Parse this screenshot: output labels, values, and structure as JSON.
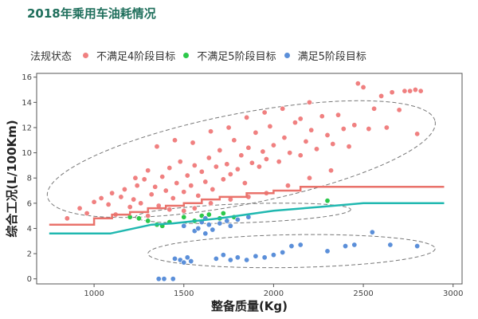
{
  "title": "2018年乘用车油耗情况",
  "chart_data": {
    "type": "scatter",
    "xlabel": "整备质量(Kg)",
    "ylabel": "综合工况(L/100Km)",
    "xlim": [
      680,
      3050
    ],
    "ylim": [
      -0.4,
      16.3
    ],
    "xticks": [
      1000,
      1500,
      2000,
      2500,
      3000
    ],
    "yticks": [
      0,
      2,
      4,
      6,
      8,
      10,
      12,
      14,
      16
    ],
    "grid": false,
    "legend": {
      "title": "法规状态",
      "placement": "top",
      "entries": [
        "不满足4阶段目标",
        "不满足5阶段目标",
        "满足5阶段目标"
      ]
    },
    "series": [
      {
        "name": "不满足4阶段目标",
        "color": "#f08080",
        "points": [
          [
            850,
            4.8
          ],
          [
            920,
            5.6
          ],
          [
            960,
            5.2
          ],
          [
            1000,
            6.1
          ],
          [
            1040,
            6.4
          ],
          [
            1080,
            5.9
          ],
          [
            1100,
            6.8
          ],
          [
            1120,
            5.1
          ],
          [
            1150,
            6.5
          ],
          [
            1170,
            7.1
          ],
          [
            1200,
            5.7
          ],
          [
            1220,
            6.3
          ],
          [
            1240,
            7.4
          ],
          [
            1260,
            6.0
          ],
          [
            1280,
            7.9
          ],
          [
            1300,
            8.6
          ],
          [
            1320,
            6.7
          ],
          [
            1340,
            7.3
          ],
          [
            1360,
            5.8
          ],
          [
            1380,
            8.1
          ],
          [
            1400,
            7.0
          ],
          [
            1420,
            8.8
          ],
          [
            1440,
            6.4
          ],
          [
            1460,
            7.6
          ],
          [
            1480,
            9.3
          ],
          [
            1500,
            6.9
          ],
          [
            1520,
            8.2
          ],
          [
            1540,
            7.4
          ],
          [
            1560,
            9.0
          ],
          [
            1580,
            6.6
          ],
          [
            1600,
            8.5
          ],
          [
            1620,
            7.7
          ],
          [
            1640,
            9.6
          ],
          [
            1660,
            7.1
          ],
          [
            1680,
            8.9
          ],
          [
            1700,
            10.2
          ],
          [
            1720,
            7.9
          ],
          [
            1740,
            9.1
          ],
          [
            1760,
            8.3
          ],
          [
            1780,
            11.0
          ],
          [
            1800,
            8.7
          ],
          [
            1820,
            9.8
          ],
          [
            1840,
            7.6
          ],
          [
            1860,
            10.4
          ],
          [
            1880,
            9.2
          ],
          [
            1900,
            11.6
          ],
          [
            1920,
            8.9
          ],
          [
            1940,
            10.1
          ],
          [
            1960,
            9.5
          ],
          [
            1980,
            12.1
          ],
          [
            2000,
            10.6
          ],
          [
            2030,
            9.3
          ],
          [
            2060,
            11.2
          ],
          [
            2090,
            10.0
          ],
          [
            2120,
            12.4
          ],
          [
            2150,
            9.8
          ],
          [
            2180,
            10.9
          ],
          [
            2210,
            11.8
          ],
          [
            2240,
            10.3
          ],
          [
            2270,
            12.9
          ],
          [
            2300,
            11.4
          ],
          [
            2330,
            10.7
          ],
          [
            2360,
            13.0
          ],
          [
            2390,
            11.9
          ],
          [
            2420,
            10.5
          ],
          [
            2450,
            12.2
          ],
          [
            2470,
            15.5
          ],
          [
            2500,
            15.2
          ],
          [
            2530,
            11.9
          ],
          [
            2560,
            13.5
          ],
          [
            2600,
            14.5
          ],
          [
            2630,
            12.0
          ],
          [
            2660,
            14.8
          ],
          [
            2700,
            13.4
          ],
          [
            2730,
            14.9
          ],
          [
            2760,
            14.9
          ],
          [
            2790,
            15.0
          ],
          [
            2820,
            14.9
          ],
          [
            2800,
            11.5
          ],
          [
            1230,
            8.0
          ],
          [
            1350,
            10.5
          ],
          [
            1450,
            11.0
          ],
          [
            1550,
            10.8
          ],
          [
            1650,
            11.7
          ],
          [
            1750,
            12.0
          ],
          [
            1850,
            12.8
          ],
          [
            1950,
            13.2
          ],
          [
            2050,
            13.5
          ],
          [
            2200,
            14.0
          ],
          [
            2150,
            12.7
          ],
          [
            1300,
            5.0
          ],
          [
            1420,
            5.5
          ],
          [
            1500,
            5.4
          ],
          [
            1560,
            5.6
          ],
          [
            1650,
            6.0
          ],
          [
            1760,
            6.3
          ],
          [
            1860,
            6.5
          ],
          [
            1960,
            6.8
          ],
          [
            2080,
            7.4
          ],
          [
            2200,
            8.0
          ],
          [
            2320,
            8.6
          ]
        ]
      },
      {
        "name": "不满足5阶段目标",
        "color": "#2cc84a",
        "points": [
          [
            1200,
            4.9
          ],
          [
            1250,
            4.8
          ],
          [
            1300,
            4.6
          ],
          [
            1350,
            4.3
          ],
          [
            1380,
            4.2
          ],
          [
            1420,
            4.5
          ],
          [
            1500,
            4.9
          ],
          [
            1560,
            4.6
          ],
          [
            1600,
            5.0
          ],
          [
            1640,
            5.1
          ],
          [
            1700,
            4.8
          ],
          [
            1720,
            5.2
          ],
          [
            1780,
            4.9
          ],
          [
            2300,
            6.2
          ]
        ]
      },
      {
        "name": "满足5阶段目标",
        "color": "#5b8fd9",
        "points": [
          [
            1360,
            0.0
          ],
          [
            1390,
            0.0
          ],
          [
            1440,
            0.0
          ],
          [
            1450,
            1.6
          ],
          [
            1480,
            1.5
          ],
          [
            1500,
            1.3
          ],
          [
            1520,
            1.7
          ],
          [
            1540,
            1.4
          ],
          [
            1560,
            3.8
          ],
          [
            1580,
            4.0
          ],
          [
            1600,
            4.5
          ],
          [
            1620,
            3.6
          ],
          [
            1640,
            4.3
          ],
          [
            1660,
            3.9
          ],
          [
            1680,
            1.6
          ],
          [
            1700,
            4.4
          ],
          [
            1720,
            1.9
          ],
          [
            1740,
            4.6
          ],
          [
            1760,
            1.5
          ],
          [
            1800,
            1.7
          ],
          [
            1850,
            1.5
          ],
          [
            1900,
            1.8
          ],
          [
            1950,
            1.7
          ],
          [
            2000,
            1.9
          ],
          [
            2050,
            2.1
          ],
          [
            2100,
            2.6
          ],
          [
            2150,
            2.7
          ],
          [
            2300,
            2.2
          ],
          [
            2400,
            2.6
          ],
          [
            2450,
            2.7
          ],
          [
            2550,
            3.7
          ],
          [
            2650,
            2.7
          ],
          [
            2800,
            2.6
          ],
          [
            1500,
            4.2
          ],
          [
            1620,
            4.8
          ],
          [
            1760,
            4.2
          ],
          [
            1800,
            4.7
          ],
          [
            1860,
            4.9
          ]
        ]
      }
    ],
    "limit_lines": [
      {
        "color": "#e9726b",
        "steps": [
          [
            750,
            4.3
          ],
          [
            1000,
            4.3
          ],
          [
            1000,
            4.8
          ],
          [
            1100,
            4.8
          ],
          [
            1100,
            5.1
          ],
          [
            1200,
            5.1
          ],
          [
            1200,
            5.3
          ],
          [
            1300,
            5.3
          ],
          [
            1300,
            5.6
          ],
          [
            1400,
            5.6
          ],
          [
            1400,
            5.8
          ],
          [
            1500,
            5.8
          ],
          [
            1500,
            6.0
          ],
          [
            1600,
            6.0
          ],
          [
            1600,
            6.3
          ],
          [
            1700,
            6.3
          ],
          [
            1700,
            6.5
          ],
          [
            1850,
            6.5
          ],
          [
            1850,
            6.8
          ],
          [
            2000,
            6.8
          ],
          [
            2000,
            7.0
          ],
          [
            2150,
            7.0
          ],
          [
            2150,
            7.3
          ],
          [
            2950,
            7.3
          ]
        ]
      },
      {
        "color": "#20b8b0",
        "steps": [
          [
            750,
            3.6
          ],
          [
            1090,
            3.6
          ],
          [
            1320,
            4.3
          ],
          [
            1440,
            4.4
          ],
          [
            1700,
            4.8
          ],
          [
            2000,
            5.4
          ],
          [
            2250,
            5.7
          ],
          [
            2500,
            6.0
          ],
          [
            2950,
            6.0
          ]
        ]
      }
    ],
    "ellipses": [
      {
        "cx": 1820,
        "cy": 9.5,
        "rx": 1100,
        "ry": 3.6,
        "angle": -11
      },
      {
        "cx": 1830,
        "cy": 5.2,
        "rx": 600,
        "ry": 0.75,
        "angle": -2
      },
      {
        "cx": 2100,
        "cy": 2.2,
        "rx": 800,
        "ry": 1.3,
        "angle": -1
      }
    ]
  }
}
